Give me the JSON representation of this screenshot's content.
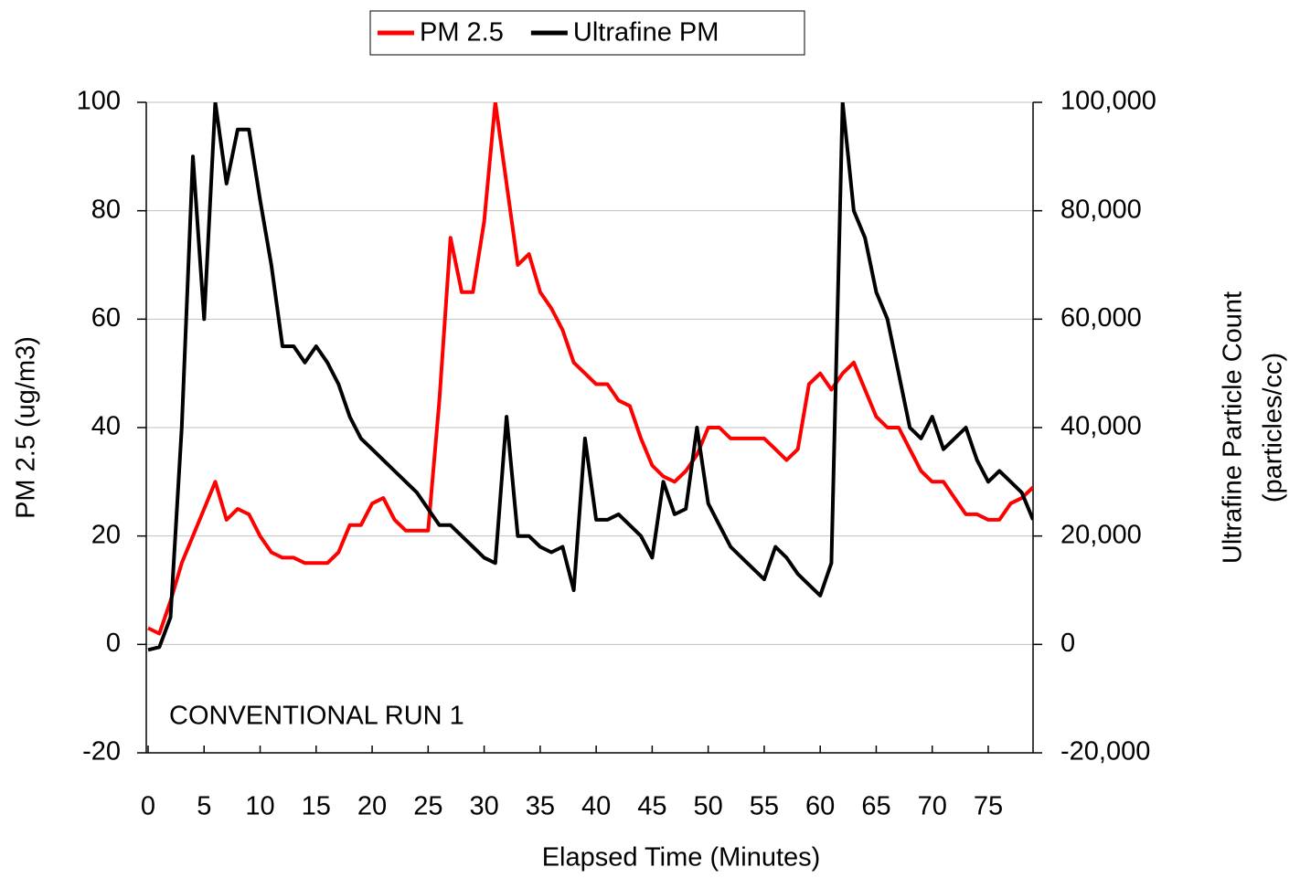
{
  "chart_data": {
    "type": "line",
    "y_label": "PM 2.5 (ug/m3)",
    "y2_label": [
      "Ultrafine Particle Count",
      "(particles/cc)"
    ],
    "x_label": "Elapsed Time (Minutes)",
    "annotation": "CONVENTIONAL RUN 1",
    "x": [
      0,
      1,
      2,
      3,
      4,
      5,
      6,
      7,
      8,
      9,
      10,
      11,
      12,
      13,
      14,
      15,
      16,
      17,
      18,
      19,
      20,
      21,
      22,
      23,
      24,
      25,
      26,
      27,
      28,
      29,
      30,
      31,
      32,
      33,
      34,
      35,
      36,
      37,
      38,
      39,
      40,
      41,
      42,
      43,
      44,
      45,
      46,
      47,
      48,
      49,
      50,
      51,
      52,
      53,
      54,
      55,
      56,
      57,
      58,
      59,
      60,
      61,
      62,
      63,
      64,
      65,
      66,
      67,
      68,
      69,
      70,
      71,
      72,
      73,
      74,
      75,
      76,
      77,
      78,
      79
    ],
    "series": [
      {
        "name": "PM 2.5",
        "color": "#ff0000",
        "values": [
          3,
          2,
          8,
          15,
          20,
          25,
          30,
          23,
          25,
          24,
          20,
          17,
          16,
          16,
          15,
          15,
          15,
          17,
          22,
          22,
          26,
          27,
          23,
          21,
          21,
          21,
          45,
          75,
          65,
          65,
          78,
          100,
          85,
          70,
          72,
          65,
          62,
          58,
          52,
          50,
          48,
          48,
          45,
          44,
          38,
          33,
          31,
          30,
          32,
          35,
          40,
          40,
          38,
          38,
          38,
          38,
          36,
          34,
          36,
          48,
          50,
          47,
          50,
          52,
          47,
          42,
          40,
          40,
          36,
          32,
          30,
          30,
          27,
          24,
          24,
          23,
          23,
          26,
          27,
          29
        ]
      },
      {
        "name": "Ultrafine PM",
        "color": "#000000",
        "axis": "y2",
        "values": [
          -1000,
          -500,
          5000,
          40000,
          90000,
          60000,
          100000,
          85000,
          95000,
          95000,
          82000,
          70000,
          55000,
          55000,
          52000,
          55000,
          52000,
          48000,
          42000,
          38000,
          36000,
          34000,
          32000,
          30000,
          28000,
          25000,
          22000,
          22000,
          20000,
          18000,
          16000,
          15000,
          42000,
          20000,
          20000,
          18000,
          17000,
          18000,
          10000,
          38000,
          23000,
          23000,
          24000,
          22000,
          20000,
          16000,
          30000,
          24000,
          25000,
          40000,
          26000,
          22000,
          18000,
          16000,
          14000,
          12000,
          18000,
          16000,
          13000,
          11000,
          9000,
          15000,
          100000,
          80000,
          75000,
          65000,
          60000,
          50000,
          40000,
          38000,
          42000,
          36000,
          38000,
          40000,
          34000,
          30000,
          32000,
          30000,
          28000,
          23000
        ]
      }
    ],
    "xlim": [
      0,
      79
    ],
    "xticks": [
      0,
      5,
      10,
      15,
      20,
      25,
      30,
      35,
      40,
      45,
      50,
      55,
      60,
      65,
      70,
      75
    ],
    "ylim": [
      -20,
      100
    ],
    "yticks": [
      -20,
      0,
      20,
      40,
      60,
      80,
      100
    ],
    "y2lim": [
      -20000,
      100000
    ],
    "y2ticks": [
      {
        "value": -20000,
        "label": "-20,000"
      },
      0,
      {
        "value": 20000,
        "label": "20,000"
      },
      {
        "value": 40000,
        "label": "40,000"
      },
      {
        "value": 60000,
        "label": "60,000"
      },
      {
        "value": 80000,
        "label": "80,000"
      },
      {
        "value": 100000,
        "label": "100,000"
      }
    ],
    "grid": true,
    "legend": "top"
  }
}
